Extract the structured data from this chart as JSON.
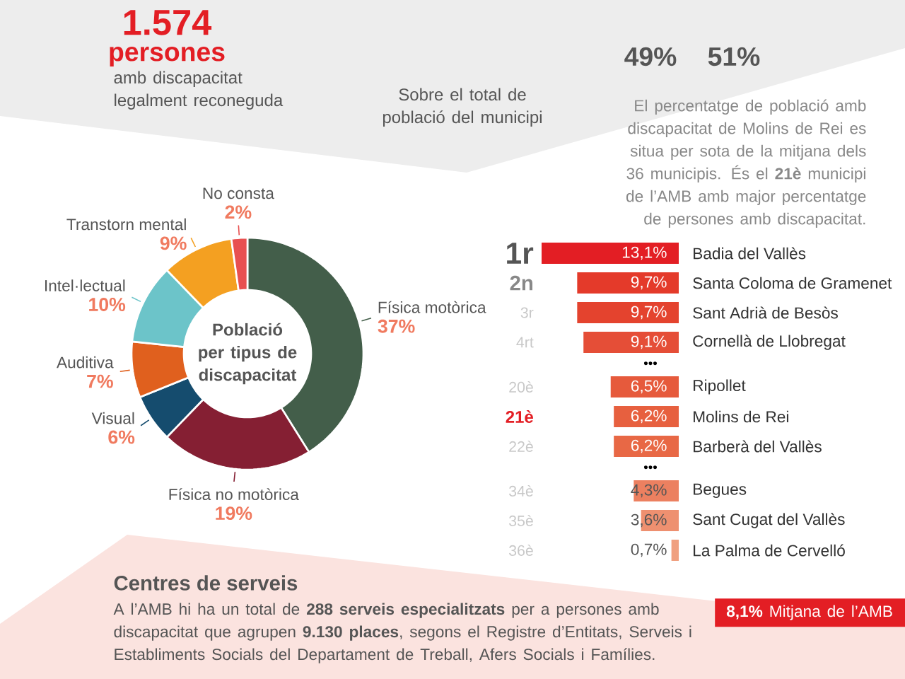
{
  "chart_data": [
    {
      "type": "other",
      "annotations": [
        "1.574",
        "persones",
        "amb discapacitat legalment reconeguda",
        "Sobre el total de població del municipi",
        "49%",
        "51%",
        "El percentatge de població amb discapacitat de Molins de Rei es situa per sota de la mitjana dels 36 municipis. És el **21è** municipi de l’AMB amb major percentatge de persones amb discapacitat."
      ]
    },
    {
      "type": "donut",
      "title": "Població per tipus de discapacitat",
      "categories": [
        "Física motòrica",
        "Física no motòrica",
        "Visual",
        "Auditiva",
        "Intel·lectual",
        "Transtorn mental",
        "No consta"
      ],
      "values": [
        37,
        19,
        6,
        7,
        10,
        9,
        2
      ],
      "value_labels": [
        "37%",
        "19%",
        "6%",
        "7%",
        "10%",
        "9%",
        "2%"
      ],
      "colors": [
        "#435e4a",
        "#851f33",
        "#154c6e",
        "#e0601e",
        "#6cc4c9",
        "#f4a021",
        "#e85050"
      ]
    },
    {
      "type": "bar",
      "orientation": "horizontal",
      "categories": [
        "Badia del Vallès",
        "Santa Coloma de Gramenet",
        "Sant Adrià de Besòs",
        "Cornellà de Llobregat",
        "Ripollet",
        "Molins de Rei",
        "Barberà del Vallès",
        "Begues",
        "Sant Cugat del Vallès",
        "La Palma de Cervelló"
      ],
      "values": [
        13.1,
        9.7,
        9.7,
        9.1,
        6.5,
        6.2,
        6.2,
        4.3,
        3.6,
        0.7
      ],
      "value_labels": [
        "13,1%",
        "9,7%",
        "9,7%",
        "9,1%",
        "6,5%",
        "6,2%",
        "6,2%",
        "4,3%",
        "3,6%",
        "0,7%"
      ],
      "colors": [
        "#e31e24",
        "#e43a2a",
        "#e4432e",
        "#e54e37",
        "#e65a3c",
        "#e7603f",
        "#e86845",
        "#ec8060",
        "#ee9070",
        "#f0a080"
      ],
      "annotations": [
        "1r",
        "2n",
        "3r",
        "4rt",
        "20è",
        "21è",
        "22è",
        "34è",
        "35è",
        "36è",
        "•••",
        "•••",
        "**8,1%** Mitjana de l’AMB"
      ]
    },
    {
      "type": "other",
      "title": "Centres de serveis",
      "annotations": [
        "A l’AMB hi ha un total de **288 serveis especialitzats** per a persones amb discapacitat que agrupen **9.130 places**, segons el Registre d’Entitats, Serveis i Establiments Socials del Departament de Treball, Afers Socials i Famílies."
      ]
    }
  ]
}
